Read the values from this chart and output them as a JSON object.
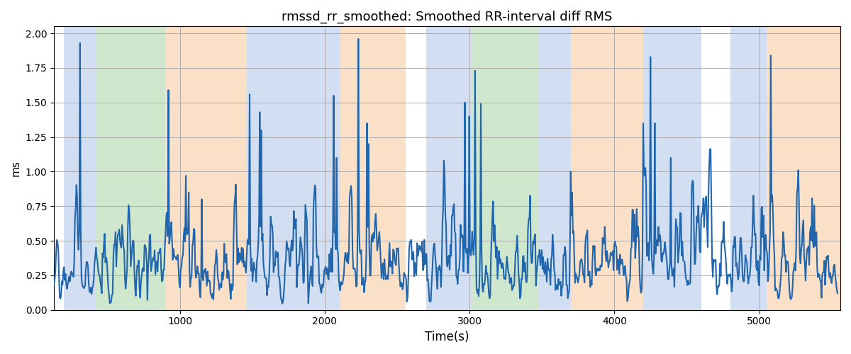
{
  "title": "rmssd_rr_smoothed: Smoothed RR-interval diff RMS",
  "xlabel": "Time(s)",
  "ylabel": "ms",
  "ylim": [
    0.0,
    2.05
  ],
  "xlim": [
    130,
    5560
  ],
  "line_color": "#2166ac",
  "line_width": 1.5,
  "grid_color": "#aaaaaa",
  "bands": [
    {
      "xmin": 200,
      "xmax": 420,
      "color": "#aec6e8",
      "alpha": 0.55
    },
    {
      "xmin": 420,
      "xmax": 900,
      "color": "#a8d5a2",
      "alpha": 0.55
    },
    {
      "xmin": 900,
      "xmax": 1460,
      "color": "#f9c89b",
      "alpha": 0.55
    },
    {
      "xmin": 1460,
      "xmax": 2110,
      "color": "#aec6e8",
      "alpha": 0.55
    },
    {
      "xmin": 2110,
      "xmax": 2560,
      "color": "#f9c89b",
      "alpha": 0.55
    },
    {
      "xmin": 2700,
      "xmax": 3020,
      "color": "#aec6e8",
      "alpha": 0.55
    },
    {
      "xmin": 3020,
      "xmax": 3480,
      "color": "#a8d5a2",
      "alpha": 0.55
    },
    {
      "xmin": 3480,
      "xmax": 3700,
      "color": "#aec6e8",
      "alpha": 0.55
    },
    {
      "xmin": 3700,
      "xmax": 4200,
      "color": "#f9c89b",
      "alpha": 0.55
    },
    {
      "xmin": 4200,
      "xmax": 4600,
      "color": "#aec6e8",
      "alpha": 0.55
    },
    {
      "xmin": 4800,
      "xmax": 5050,
      "color": "#aec6e8",
      "alpha": 0.55
    },
    {
      "xmin": 5050,
      "xmax": 5560,
      "color": "#f9c89b",
      "alpha": 0.55
    }
  ],
  "t_start": 130,
  "t_end": 5540,
  "n_points": 1082
}
